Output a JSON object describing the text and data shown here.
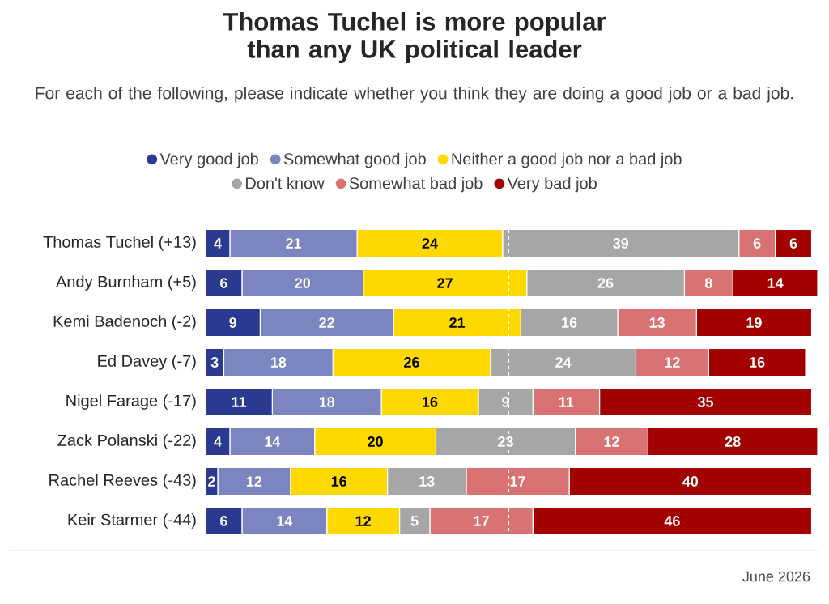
{
  "chart_data": {
    "type": "bar",
    "orientation": "horizontal",
    "stacked": true,
    "data_labels": true,
    "legend": "top",
    "tick_labels": "y",
    "title": "Thomas Tuchel is more popular than any UK political leader",
    "subtitle": "For each of the following, please indicate whether you think they are doing a good job or a bad job.",
    "categories": [
      "Thomas Tuchel (+13)",
      "Andy Burnham (+5)",
      "Kemi Badenoch (-2)",
      "Ed Davey (-7)",
      "Nigel Farage (-17)",
      "Zack Polanski (-22)",
      "Rachel Reeves (-43)",
      "Keir Starmer (-44)"
    ],
    "series": [
      {
        "name": "Very good job",
        "color": "#2b3990",
        "values": [
          4,
          6,
          9,
          3,
          11,
          4,
          2,
          6
        ]
      },
      {
        "name": "Somewhat good job",
        "color": "#7b86c0",
        "values": [
          21,
          20,
          22,
          18,
          18,
          14,
          12,
          14
        ]
      },
      {
        "name": "Neither a good job nor a bad job",
        "color": "#ffd800",
        "values": [
          24,
          27,
          21,
          26,
          16,
          20,
          16,
          12
        ]
      },
      {
        "name": "Don't know",
        "color": "#a6a6a6",
        "values": [
          39,
          26,
          16,
          24,
          9,
          23,
          13,
          5
        ]
      },
      {
        "name": "Somewhat bad job",
        "color": "#d97272",
        "values": [
          6,
          8,
          13,
          12,
          11,
          12,
          17,
          17
        ]
      },
      {
        "name": "Very bad job",
        "color": "#a30000",
        "values": [
          6,
          14,
          19,
          16,
          35,
          28,
          40,
          46
        ]
      }
    ],
    "xlim": [
      0,
      101
    ],
    "ref_lines": [
      {
        "axis": "x",
        "value": 50,
        "color": "#ffffff",
        "line_style": "dashed"
      }
    ],
    "annotations": [
      "June 2026"
    ]
  }
}
